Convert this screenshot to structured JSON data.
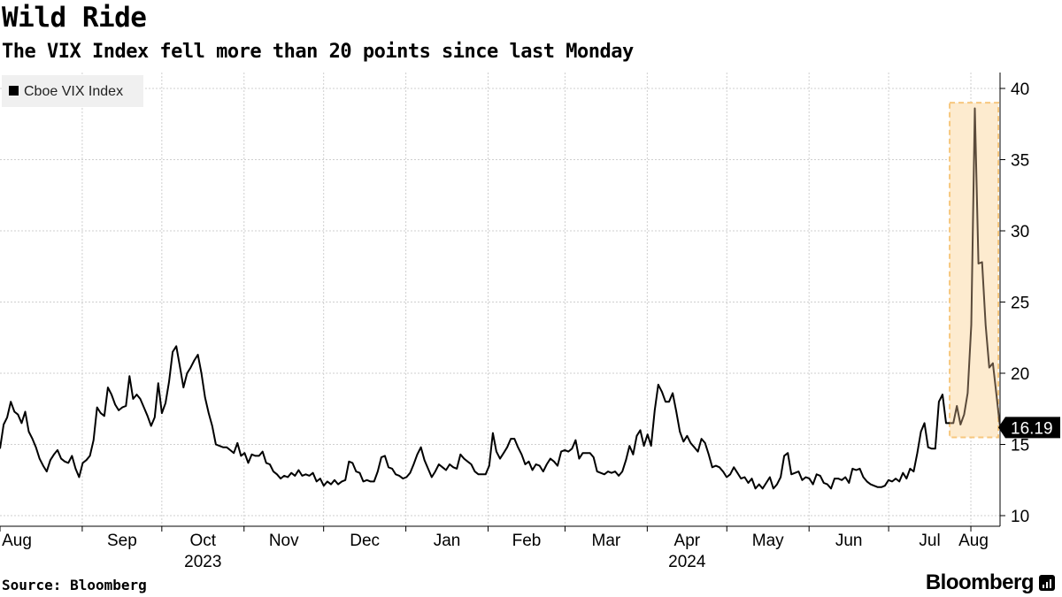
{
  "header": {
    "title": "Wild Ride",
    "subtitle": "The VIX Index fell more than 20 points since last Monday"
  },
  "footer": {
    "source": "Source: Bloomberg",
    "brand": "Bloomberg",
    "brand_icon": "bloomberg-bars-icon"
  },
  "chart_data": {
    "type": "line",
    "series": [
      {
        "name": "Cboe VIX Index",
        "color": "#000000",
        "x_start": "2023-08-01",
        "values": [
          14.7,
          16.4,
          16.9,
          18.0,
          17.3,
          17.1,
          16.5,
          17.3,
          15.9,
          15.4,
          14.8,
          14.0,
          13.5,
          13.1,
          13.9,
          14.3,
          14.6,
          14.0,
          13.8,
          13.7,
          14.2,
          13.3,
          12.7,
          13.7,
          13.9,
          14.2,
          15.3,
          17.6,
          17.2,
          17.0,
          19.0,
          18.5,
          17.8,
          17.4,
          17.6,
          17.7,
          19.8,
          18.2,
          18.5,
          18.2,
          17.6,
          17.0,
          16.3,
          16.9,
          19.3,
          17.2,
          17.9,
          19.4,
          21.5,
          21.9,
          20.5,
          19.0,
          20.0,
          20.4,
          20.9,
          21.3,
          20.0,
          18.3,
          17.2,
          16.3,
          15.0,
          14.9,
          14.8,
          14.8,
          14.6,
          14.4,
          15.1,
          14.2,
          14.4,
          13.7,
          14.3,
          14.2,
          14.2,
          14.5,
          13.7,
          13.6,
          13.1,
          12.9,
          12.6,
          12.8,
          12.7,
          13.0,
          12.8,
          13.2,
          12.8,
          12.9,
          12.8,
          13.0,
          12.4,
          12.6,
          12.1,
          12.4,
          12.2,
          12.5,
          12.2,
          12.4,
          12.5,
          13.8,
          13.7,
          13.1,
          13.0,
          12.4,
          12.5,
          12.4,
          12.4,
          13.1,
          14.1,
          14.2,
          13.4,
          13.3,
          12.9,
          12.8,
          12.6,
          12.7,
          13.0,
          13.6,
          14.3,
          14.8,
          13.9,
          13.3,
          12.7,
          13.1,
          13.6,
          13.4,
          13.2,
          13.6,
          13.4,
          13.3,
          14.3,
          14.0,
          13.8,
          13.6,
          13.1,
          12.9,
          12.9,
          12.9,
          13.5,
          15.8,
          14.5,
          14.0,
          14.4,
          14.8,
          15.4,
          15.4,
          14.8,
          14.3,
          13.6,
          13.8,
          13.2,
          13.6,
          13.5,
          13.1,
          13.6,
          14.0,
          13.8,
          13.5,
          14.5,
          14.6,
          14.5,
          14.7,
          15.3,
          14.0,
          14.4,
          14.4,
          14.4,
          14.1,
          13.1,
          13.0,
          12.9,
          13.1,
          13.0,
          13.1,
          12.8,
          13.1,
          13.9,
          14.9,
          14.3,
          15.6,
          16.0,
          14.9,
          15.7,
          14.9,
          17.4,
          19.2,
          18.7,
          18.0,
          18.0,
          18.6,
          17.3,
          15.9,
          15.2,
          15.6,
          15.1,
          14.8,
          14.5,
          15.4,
          15.1,
          14.3,
          13.4,
          13.5,
          13.4,
          13.1,
          12.7,
          12.9,
          13.4,
          13.0,
          12.6,
          12.7,
          12.3,
          12.6,
          11.9,
          12.2,
          11.9,
          12.3,
          12.7,
          11.9,
          12.2,
          12.7,
          14.2,
          14.4,
          12.9,
          13.0,
          13.1,
          12.5,
          12.7,
          12.6,
          12.2,
          12.9,
          12.8,
          12.3,
          12.2,
          11.9,
          12.6,
          12.6,
          12.5,
          12.7,
          12.3,
          13.3,
          13.2,
          13.3,
          12.7,
          12.4,
          12.2,
          12.1,
          12.0,
          12.0,
          12.1,
          12.5,
          12.4,
          12.6,
          12.4,
          13.0,
          12.6,
          13.3,
          13.1,
          14.4,
          15.9,
          16.5,
          14.8,
          14.7,
          14.7,
          18.0,
          18.5,
          16.5,
          16.5,
          16.5,
          17.7,
          16.4,
          17.1,
          18.6,
          23.4,
          38.6,
          27.7,
          27.8,
          23.4,
          20.4,
          20.7,
          18.5,
          16.19
        ]
      }
    ],
    "y_ticks": [
      10,
      15,
      20,
      25,
      30,
      35,
      40
    ],
    "ylim": [
      9.5,
      41.2
    ],
    "x_ticks": [
      {
        "label": "Aug",
        "date": "2023-08-01"
      },
      {
        "label": "Sep",
        "date": "2023-09-01"
      },
      {
        "label": "Oct",
        "date": "2023-10-01"
      },
      {
        "label": "Nov",
        "date": "2023-11-01"
      },
      {
        "label": "Dec",
        "date": "2023-12-01"
      },
      {
        "label": "Jan",
        "date": "2024-01-01"
      },
      {
        "label": "Feb",
        "date": "2024-02-01"
      },
      {
        "label": "Mar",
        "date": "2024-03-01"
      },
      {
        "label": "Apr",
        "date": "2024-04-01"
      },
      {
        "label": "May",
        "date": "2024-05-01"
      },
      {
        "label": "Jun",
        "date": "2024-06-01"
      },
      {
        "label": "Jul",
        "date": "2024-07-01"
      },
      {
        "label": "Aug",
        "date": "2024-08-01"
      }
    ],
    "year_labels": [
      {
        "label": "2023",
        "date": "2023-10-01"
      },
      {
        "label": "2024",
        "date": "2024-04-01"
      }
    ],
    "x_end": "2024-08-12",
    "highlight": {
      "x0": "2024-07-24",
      "x1": "2024-08-12",
      "y0": 15.5,
      "y1": 39.0,
      "fill": "#fdebcf",
      "stroke": "#f7c77e",
      "line_color": "#5a4a3a"
    },
    "last_value_label": "16.19",
    "grid": true,
    "legend_position": "top-left",
    "y_axis_position": "right"
  }
}
